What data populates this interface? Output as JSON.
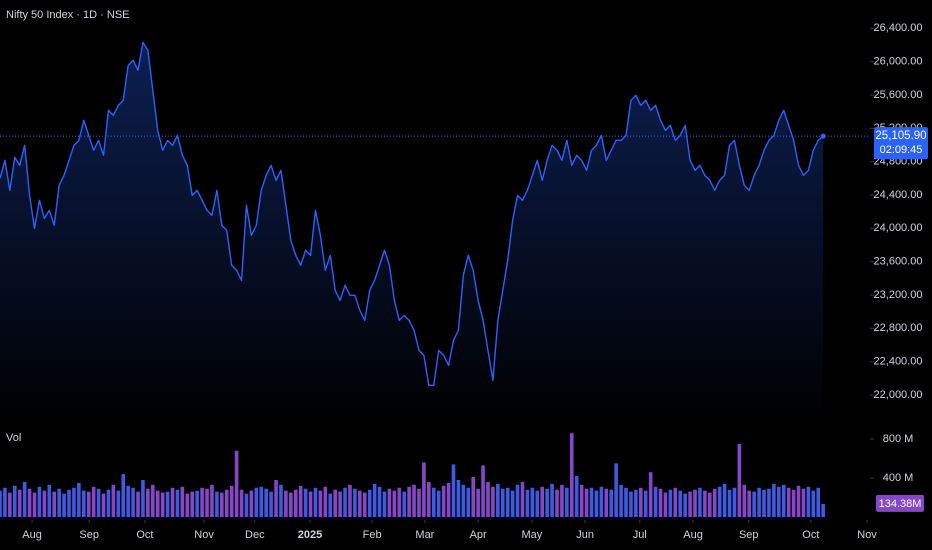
{
  "chart_data": [
    {
      "type": "line",
      "title": "Nifty 50 Index · 1D · NSE",
      "color": "#2962ff",
      "last_price_label": "25,105.90",
      "countdown": "02:09:45",
      "xlim": [
        0,
        176.5
      ],
      "ylim": [
        21640,
        26740
      ],
      "yticks": [
        {
          "value": 26400,
          "label": "26,400.00"
        },
        {
          "value": 26000,
          "label": "26,000.00"
        },
        {
          "value": 25600,
          "label": "25,600.00"
        },
        {
          "value": 25200,
          "label": "25,200.00"
        },
        {
          "value": 24800,
          "label": "24,800.00"
        },
        {
          "value": 24400,
          "label": "24,400.00"
        },
        {
          "value": 24000,
          "label": "24,000.00"
        },
        {
          "value": 23600,
          "label": "23,600.00"
        },
        {
          "value": 23200,
          "label": "23,200.00"
        },
        {
          "value": 22800,
          "label": "22,800.00"
        },
        {
          "value": 22400,
          "label": "22,400.00"
        },
        {
          "value": 22000,
          "label": "22,000.00"
        }
      ],
      "values": [
        24600,
        24816,
        24456,
        24852,
        24756,
        24996,
        24396,
        24000,
        24336,
        24120,
        24216,
        24036,
        24516,
        24636,
        24816,
        24996,
        25056,
        25296,
        25116,
        24936,
        25056,
        24876,
        25416,
        25356,
        25476,
        25536,
        25956,
        26016,
        25896,
        26232,
        26136,
        25656,
        25176,
        24936,
        25056,
        24996,
        25116,
        24876,
        24756,
        24396,
        24456,
        24336,
        24216,
        24156,
        24456,
        24036,
        23976,
        23556,
        23496,
        23376,
        24276,
        23916,
        24036,
        24456,
        24636,
        24756,
        24576,
        24696,
        24276,
        23856,
        23676,
        23556,
        23736,
        23676,
        24216,
        23916,
        23496,
        23676,
        23256,
        23136,
        23316,
        23196,
        23196,
        23016,
        22896,
        23256,
        23376,
        23556,
        23736,
        23556,
        23136,
        22896,
        22956,
        22896,
        22776,
        22536,
        22476,
        22116,
        22116,
        22536,
        22476,
        22356,
        22656,
        22776,
        23436,
        23676,
        23496,
        23136,
        22896,
        22536,
        22176,
        22896,
        23256,
        23616,
        24096,
        24396,
        24336,
        24456,
        24636,
        24816,
        24576,
        24816,
        24996,
        24936,
        24816,
        25056,
        24756,
        24876,
        24816,
        24696,
        24936,
        24996,
        25116,
        24816,
        24936,
        25056,
        25056,
        25116,
        25536,
        25596,
        25476,
        25536,
        25416,
        25476,
        25296,
        25176,
        25236,
        25056,
        25116,
        25236,
        24816,
        24696,
        24756,
        24636,
        24576,
        24456,
        24576,
        24636,
        24996,
        25056,
        24756,
        24516,
        24456,
        24636,
        24756,
        24936,
        25056,
        25116,
        25296,
        25416,
        25236,
        25056,
        24756,
        24636,
        24696,
        24936,
        25056,
        25105.9
      ]
    },
    {
      "type": "bar",
      "label": "Vol",
      "up_color": "#3d5ae0",
      "down_color": "#8646c8",
      "last_volume_label": "134.38M",
      "xlim": [
        0,
        176.5
      ],
      "ylim": [
        0,
        944
      ],
      "yticks": [
        {
          "value": 800,
          "label": "800 M"
        },
        {
          "value": 400,
          "label": "400 M"
        }
      ],
      "xticks": [
        {
          "value": 6.5,
          "label": "Aug"
        },
        {
          "value": 18.1,
          "label": "Sep"
        },
        {
          "value": 29.4,
          "label": "Oct"
        },
        {
          "value": 41.4,
          "label": "Nov"
        },
        {
          "value": 51.7,
          "label": "Dec"
        },
        {
          "value": 62.9,
          "label": "2025"
        },
        {
          "value": 75.5,
          "label": "Feb"
        },
        {
          "value": 86.2,
          "label": "Mar"
        },
        {
          "value": 97.0,
          "label": "Apr"
        },
        {
          "value": 107.9,
          "label": "May"
        },
        {
          "value": 118.7,
          "label": "Jun"
        },
        {
          "value": 129.8,
          "label": "Jul"
        },
        {
          "value": 140.6,
          "label": "Aug"
        },
        {
          "value": 151.9,
          "label": "Sep"
        },
        {
          "value": 164.5,
          "label": "Oct"
        },
        {
          "value": 175.9,
          "label": "Nov"
        }
      ],
      "values": [
        270,
        300,
        250,
        320,
        280,
        360,
        290,
        250,
        310,
        270,
        330,
        260,
        290,
        240,
        280,
        300,
        350,
        270,
        260,
        310,
        290,
        240,
        280,
        330,
        270,
        440,
        320,
        300,
        260,
        380,
        290,
        330,
        270,
        250,
        260,
        300,
        280,
        310,
        240,
        260,
        270,
        300,
        290,
        330,
        260,
        250,
        280,
        320,
        680,
        280,
        240,
        270,
        300,
        310,
        290,
        260,
        380,
        330,
        270,
        250,
        280,
        320,
        290,
        260,
        300,
        270,
        310,
        240,
        280,
        260,
        300,
        330,
        290,
        270,
        250,
        280,
        340,
        310,
        260,
        290,
        270,
        300,
        260,
        310,
        330,
        290,
        560,
        360,
        300,
        270,
        320,
        350,
        540,
        380,
        330,
        300,
        410,
        290,
        530,
        360,
        310,
        340,
        290,
        300,
        270,
        330,
        360,
        280,
        300,
        270,
        310,
        290,
        340,
        280,
        330,
        300,
        860,
        420,
        330,
        290,
        300,
        270,
        310,
        290,
        280,
        550,
        330,
        300,
        260,
        280,
        300,
        270,
        460,
        310,
        290,
        250,
        280,
        300,
        270,
        240,
        260,
        280,
        300,
        270,
        250,
        290,
        310,
        340,
        280,
        300,
        750,
        330,
        270,
        260,
        300,
        280,
        290,
        340,
        310,
        330,
        300,
        280,
        320,
        290,
        310,
        270,
        300,
        134.38
      ]
    }
  ]
}
